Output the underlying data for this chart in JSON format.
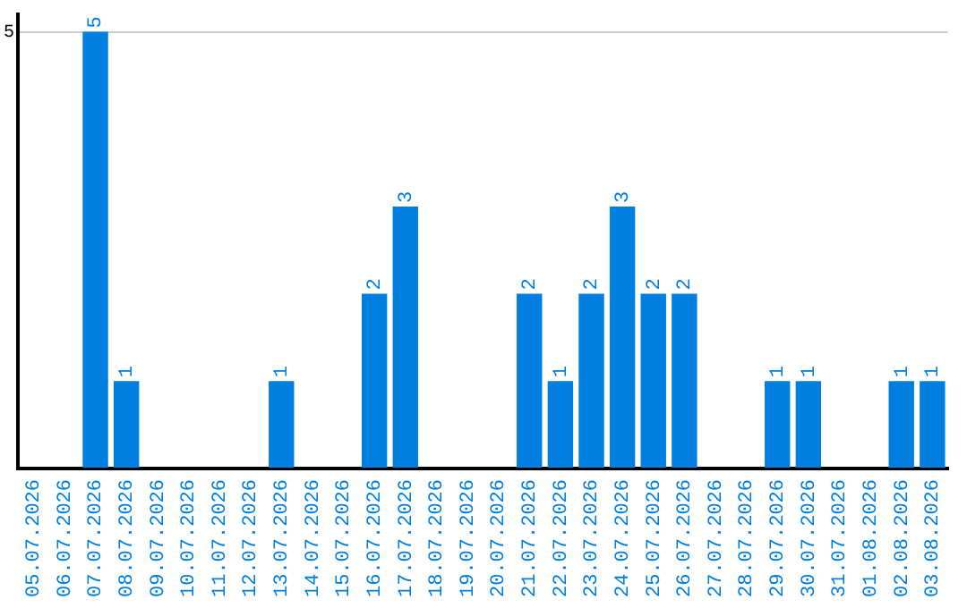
{
  "chart_data": {
    "type": "bar",
    "categories": [
      "05.07.2026",
      "06.07.2026",
      "07.07.2026",
      "08.07.2026",
      "09.07.2026",
      "10.07.2026",
      "11.07.2026",
      "12.07.2026",
      "13.07.2026",
      "14.07.2026",
      "15.07.2026",
      "16.07.2026",
      "17.07.2026",
      "18.07.2026",
      "19.07.2026",
      "20.07.2026",
      "21.07.2026",
      "22.07.2026",
      "23.07.2026",
      "24.07.2026",
      "25.07.2026",
      "26.07.2026",
      "27.07.2026",
      "28.07.2026",
      "29.07.2026",
      "30.07.2026",
      "31.07.2026",
      "01.08.2026",
      "02.08.2026",
      "03.08.2026"
    ],
    "values": [
      0,
      0,
      5,
      1,
      0,
      0,
      0,
      0,
      1,
      0,
      0,
      2,
      3,
      0,
      0,
      0,
      2,
      1,
      2,
      3,
      2,
      2,
      0,
      0,
      1,
      1,
      0,
      0,
      1,
      1
    ],
    "value_labels": [
      null,
      null,
      "5",
      "1",
      null,
      null,
      null,
      null,
      "1",
      null,
      null,
      "2",
      "3",
      null,
      null,
      null,
      "2",
      "1",
      "2",
      "3",
      "2",
      "2",
      null,
      null,
      "1",
      "1",
      null,
      null,
      "1",
      "1"
    ],
    "color": "#007fe0",
    "ylim": [
      0,
      5.2
    ],
    "yticks": [
      {
        "value": 0,
        "label": null
      },
      5
    ],
    "grid": "y",
    "legend": false
  }
}
